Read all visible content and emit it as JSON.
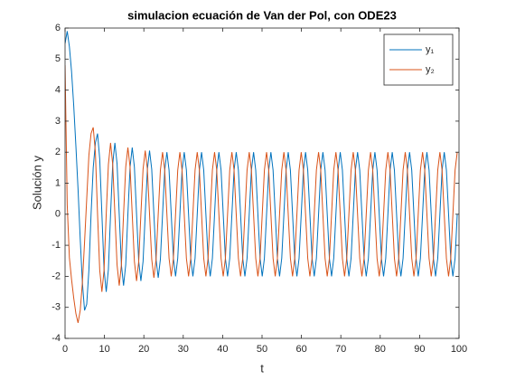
{
  "chart_data": {
    "type": "line",
    "title": "simulacion ecuación de Van der Pol, con ODE23",
    "xlabel": "t",
    "ylabel": "Solución y",
    "xlim": [
      0,
      100
    ],
    "xticks": [
      0,
      10,
      20,
      30,
      40,
      50,
      60,
      70,
      80,
      90,
      100
    ],
    "ylim": [
      -4,
      6
    ],
    "yticks": [
      -4,
      -3,
      -2,
      -1,
      0,
      1,
      2,
      3,
      4,
      5,
      6
    ],
    "legend": "top-right",
    "x": [
      0,
      0.55,
      1.1,
      1.65,
      2.2,
      2.75,
      3.3,
      3.85,
      4.4,
      4.95,
      5.5,
      6.05,
      6.6,
      7.15,
      7.7,
      8.25,
      8.8,
      9.35,
      9.9,
      10.45,
      11,
      11.55,
      12.1,
      12.65,
      13.2,
      13.75,
      14.3,
      14.85,
      15.4,
      15.95,
      16.5,
      17.05,
      17.6,
      18.15,
      18.7,
      19.25,
      19.8,
      20.35,
      20.9,
      21.45,
      22,
      22.55,
      23.1,
      23.65,
      24.2,
      24.75,
      25.3,
      25.85,
      26.4,
      26.95,
      27.5,
      28.05,
      28.6,
      29.15,
      29.7,
      30.25,
      30.8,
      31.35,
      31.9,
      32.45,
      33,
      33.55,
      34.1,
      34.65,
      35.2,
      35.75,
      36.3,
      36.85,
      37.4,
      37.95,
      38.5,
      39.05,
      39.6,
      40.15,
      40.7,
      41.25,
      41.8,
      42.35,
      42.9,
      43.45,
      44,
      44.55,
      45.1,
      45.65,
      46.2,
      46.75,
      47.3,
      47.85,
      48.4,
      48.95,
      49.5,
      50.05,
      50.6,
      51.15,
      51.7,
      52.25,
      52.8,
      53.35,
      53.9,
      54.45,
      55,
      55.55,
      56.1,
      56.65,
      57.2,
      57.75,
      58.3,
      58.85,
      59.4,
      59.95,
      60.5,
      61.05,
      61.6,
      62.15,
      62.7,
      63.25,
      63.8,
      64.35,
      64.9,
      65.45,
      66,
      66.55,
      67.1,
      67.65,
      68.2,
      68.75,
      69.3,
      69.85,
      70.4,
      70.95,
      71.5,
      72.05,
      72.6,
      73.15,
      73.7,
      74.25,
      74.8,
      75.35,
      75.9,
      76.45,
      77,
      77.55,
      78.1,
      78.65,
      79.2,
      79.75,
      80.3,
      80.85,
      81.4,
      81.95,
      82.5,
      83.05,
      83.6,
      84.15,
      84.7,
      85.25,
      85.8,
      86.35,
      86.9,
      87.45,
      88,
      88.55,
      89.1,
      89.65,
      90.2,
      90.75,
      91.3,
      91.85,
      92.4,
      92.95,
      93.5,
      94.05,
      94.6,
      95.15,
      95.7,
      96.25,
      96.8,
      97.35,
      97.9,
      98.45,
      99,
      99.55
    ],
    "series": [
      {
        "name": "y₁",
        "color": "#0072BD",
        "values": [
          5.5,
          5.9,
          5.4,
          4.6,
          3.5,
          2.2,
          0.8,
          -0.8,
          -2.2,
          -3.1,
          -2.9,
          -1.8,
          0,
          1.5,
          2.3,
          2.6,
          1.78,
          0,
          -1.78,
          -2.5,
          -1.78,
          0,
          1.63,
          2.3,
          1.63,
          0,
          -1.63,
          -2.3,
          -1.63,
          0,
          1.52,
          2.15,
          1.52,
          0,
          -1.52,
          -2.15,
          -1.52,
          0,
          1.45,
          2.05,
          1.45,
          0,
          -1.45,
          -2.05,
          -1.45,
          0,
          1.42,
          2,
          1.42,
          0,
          -1.42,
          -2,
          -1.42,
          0,
          1.42,
          2,
          1.42,
          0,
          -1.42,
          -2,
          -1.42,
          0,
          1.42,
          2,
          1.42,
          0,
          -1.42,
          -2,
          -1.42,
          0,
          1.42,
          2,
          1.42,
          0,
          -1.42,
          -2,
          -1.42,
          0,
          1.42,
          2,
          1.42,
          0,
          -1.42,
          -2,
          -1.42,
          0,
          1.42,
          2,
          1.42,
          0,
          -1.42,
          -2,
          -1.42,
          0,
          1.42,
          2,
          1.42,
          0,
          -1.42,
          -2,
          -1.42,
          0,
          1.42,
          2,
          1.42,
          0,
          -1.42,
          -2,
          -1.42,
          0,
          1.42,
          2,
          1.42,
          0,
          -1.42,
          -2,
          -1.42,
          0,
          1.42,
          2,
          1.42,
          0,
          -1.42,
          -2,
          -1.42,
          0,
          1.42,
          2,
          1.42,
          0,
          -1.42,
          -2,
          -1.42,
          0,
          1.42,
          2,
          1.42,
          0,
          -1.42,
          -2,
          -1.42,
          0,
          1.42,
          2,
          1.42,
          0,
          -1.42,
          -2,
          -1.42,
          0,
          1.42,
          2,
          1.42,
          0,
          -1.42,
          -2,
          -1.42,
          0,
          1.42,
          2,
          1.42,
          0,
          -1.42,
          -2,
          -1.42,
          0,
          1.42,
          2,
          1.42,
          0,
          -1.42,
          -2,
          -1.42,
          0,
          1.42,
          2,
          1.42,
          0,
          -1.42,
          -2,
          -1.42,
          0
        ]
      },
      {
        "name": "y₂",
        "color": "#D95319",
        "values": [
          4.8,
          0.3,
          -1.4,
          -2.1,
          -2.7,
          -3.2,
          -3.5,
          -3.1,
          -2.2,
          -0.9,
          0.5,
          1.9,
          2.6,
          2.8,
          2.0,
          0,
          -1.8,
          -2.5,
          -1.8,
          0,
          1.6,
          2.3,
          1.6,
          0,
          -1.63,
          -2.3,
          -1.63,
          0,
          1.52,
          2.15,
          1.52,
          0,
          -1.52,
          -2.15,
          -1.52,
          0,
          1.45,
          2.05,
          1.45,
          0,
          -1.45,
          -2.05,
          -1.45,
          0,
          1.42,
          2,
          1.42,
          0,
          -1.42,
          -2,
          -1.42,
          0,
          1.42,
          2,
          1.42,
          0,
          -1.42,
          -2,
          -1.42,
          0,
          1.42,
          2,
          1.42,
          0,
          -1.42,
          -2,
          -1.42,
          0,
          1.42,
          2,
          1.42,
          0,
          -1.42,
          -2,
          -1.42,
          0,
          1.42,
          2,
          1.42,
          0,
          -1.42,
          -2,
          -1.42,
          0,
          1.42,
          2,
          1.42,
          0,
          -1.42,
          -2,
          -1.42,
          0,
          1.42,
          2,
          1.42,
          0,
          -1.42,
          -2,
          -1.42,
          0,
          1.42,
          2,
          1.42,
          0,
          -1.42,
          -2,
          -1.42,
          0,
          1.42,
          2,
          1.42,
          0,
          -1.42,
          -2,
          -1.42,
          0,
          1.42,
          2,
          1.42,
          0,
          -1.42,
          -2,
          -1.42,
          0,
          1.42,
          2,
          1.42,
          0,
          -1.42,
          -2,
          -1.42,
          0,
          1.42,
          2,
          1.42,
          0,
          -1.42,
          -2,
          -1.42,
          0,
          1.42,
          2,
          1.42,
          0,
          -1.42,
          -2,
          -1.42,
          0,
          1.42,
          2,
          1.42,
          0,
          -1.42,
          -2,
          -1.42,
          0,
          1.42,
          2,
          1.42,
          0,
          -1.42,
          -2,
          -1.42,
          0,
          1.42,
          2,
          1.42,
          0,
          -1.42,
          -2,
          -1.42,
          0,
          1.42,
          2,
          1.42,
          0,
          -1.42,
          -2,
          -1.42,
          0,
          1.42,
          2
        ]
      }
    ]
  }
}
